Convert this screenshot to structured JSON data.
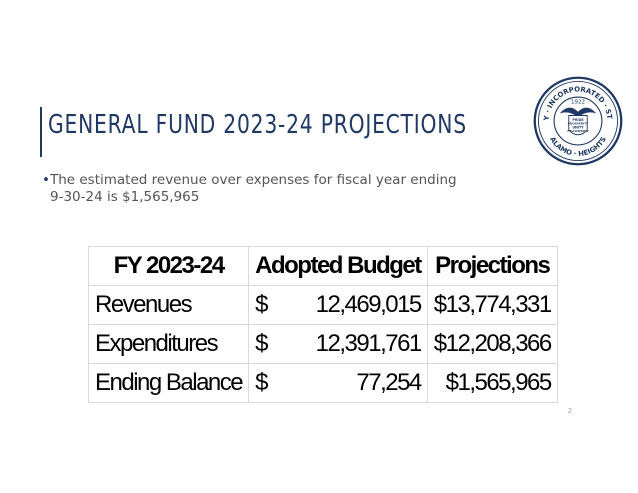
{
  "slide": {
    "title": "GENERAL FUND 2023-24 PROJECTIONS",
    "bullet_marker": "•",
    "bullet_line1": "The estimated revenue over expenses for fiscal year ending",
    "bullet_line2": "9-30-24 is $1,565,965",
    "page_number": "2"
  },
  "seal": {
    "top_text": "INCORPORATED",
    "year": "1922",
    "left_text": "CITY OF",
    "right_text": "STATE",
    "bottom_left": "ALAMO",
    "bottom_right": "HEIGHTS",
    "motto": [
      "PRIDE",
      "PROSPERITY",
      "UNITY",
      "FELLOWSHIP"
    ],
    "color": "#1f3864"
  },
  "table": {
    "headers": [
      "FY 2023-24",
      "Adopted Budget",
      "Projections"
    ],
    "rows": [
      {
        "label": "Revenues",
        "currency": "$",
        "adopted": "12,469,015",
        "projection": "$13,774,331"
      },
      {
        "label": "Expenditures",
        "currency": "$",
        "adopted": "12,391,761",
        "projection": "$12,208,366"
      },
      {
        "label": "Ending Balance",
        "currency": "$",
        "adopted": "77,254",
        "projection": "$1,565,965"
      }
    ]
  },
  "colors": {
    "accent": "#1f3864",
    "body_text": "#555555",
    "table_border": "#d9d9d9"
  }
}
